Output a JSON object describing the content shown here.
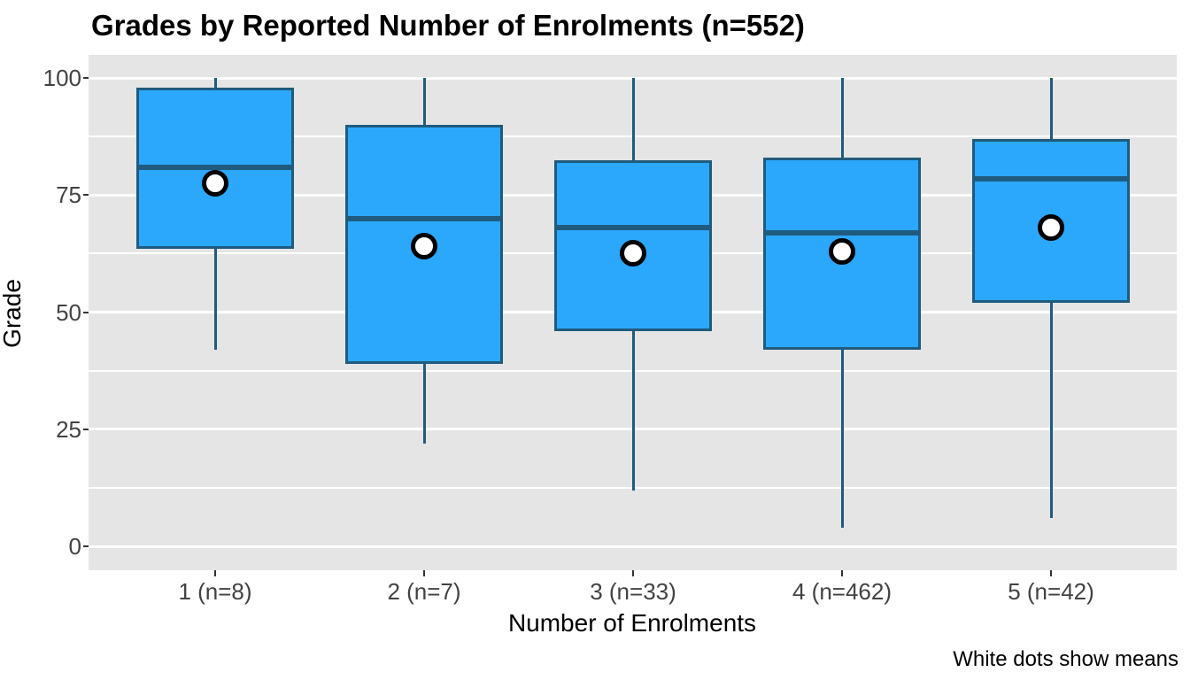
{
  "chart_data": {
    "type": "boxplot",
    "title": "Grades by Reported Number of Enrolments (n=552)",
    "xlabel": "Number of Enrolments",
    "ylabel": "Grade",
    "caption": "White dots show means",
    "total_n": 552,
    "ylim": [
      0,
      100
    ],
    "y_ticks": [
      0,
      25,
      50,
      75,
      100
    ],
    "y_minor_ticks": [
      12.5,
      37.5,
      62.5,
      87.5
    ],
    "grid": "on",
    "legend": "none",
    "categories": [
      "1 (n=8)",
      "2 (n=7)",
      "3 (n=33)",
      "4 (n=462)",
      "5 (n=42)"
    ],
    "group_sizes": [
      8,
      7,
      33,
      462,
      42
    ],
    "boxes": [
      {
        "label": "1 (n=8)",
        "whisker_low": 42,
        "q1": 63.5,
        "median": 81,
        "q3": 98,
        "whisker_high": 100,
        "mean": 77.5
      },
      {
        "label": "2 (n=7)",
        "whisker_low": 22,
        "q1": 39,
        "median": 70,
        "q3": 90,
        "whisker_high": 100,
        "mean": 64
      },
      {
        "label": "3 (n=33)",
        "whisker_low": 12,
        "q1": 46,
        "median": 68,
        "q3": 82.5,
        "whisker_high": 100,
        "mean": 62.5
      },
      {
        "label": "4 (n=462)",
        "whisker_low": 4,
        "q1": 42,
        "median": 67,
        "q3": 83,
        "whisker_high": 100,
        "mean": 63
      },
      {
        "label": "5 (n=42)",
        "whisker_low": 6,
        "q1": 52,
        "median": 78.5,
        "q3": 87,
        "whisker_high": 100,
        "mean": 68
      }
    ],
    "colors": {
      "box_fill": "#2BA8FC",
      "box_border": "#1F5B7E",
      "panel_bg": "#E5E5E5",
      "gridline": "#FFFFFF",
      "axis_text": "#424242",
      "title_text": "#000000",
      "mean_fill": "#FFFFFF",
      "mean_border": "#000000"
    }
  }
}
